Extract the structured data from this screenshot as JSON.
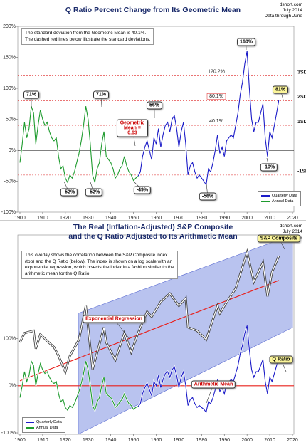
{
  "chart_data": [
    {
      "type": "line",
      "title": [
        "Q Ratio Percent Change from Its Geometric Mean"
      ],
      "source": [
        "dshort.com",
        "July 2014",
        "Data through June"
      ],
      "notes": [
        "The standard deviation from the Geometric Mean is 40.1%.",
        "The dashed red lines below illustrate the standard deviations."
      ],
      "xlim": [
        1900,
        2020
      ],
      "xticks": [
        1900,
        1910,
        1920,
        1930,
        1940,
        1950,
        1960,
        1970,
        1980,
        1990,
        2000,
        2010,
        2020
      ],
      "ylim": [
        -100,
        200
      ],
      "yticks": [
        {
          "value": -100,
          "label": "-100%"
        },
        {
          "value": -50,
          "label": "-50%"
        },
        {
          "value": 0,
          "label": "0%"
        },
        {
          "value": 50,
          "label": "50%"
        },
        {
          "value": 100,
          "label": "100%"
        },
        {
          "value": 150,
          "label": "150%"
        },
        {
          "value": 200,
          "label": "200%"
        }
      ],
      "mean_line": {
        "value": 0,
        "label": "Geometric Mean = 0.63",
        "color": "#000000"
      },
      "sd_lines": [
        {
          "value": 120.2,
          "label": "120.2%",
          "sd": "3SD"
        },
        {
          "value": 80.1,
          "label": "80.1%",
          "sd": "2SD"
        },
        {
          "value": 40.1,
          "label": "40.1%",
          "sd": "1SD"
        },
        {
          "value": -40.1,
          "sd": "-1SD"
        }
      ],
      "series": [
        {
          "name": "Quarterly Data",
          "color": "#1c1cc8",
          "x": [
            1952,
            1953,
            1954,
            1955,
            1956,
            1957,
            1958,
            1959,
            1960,
            1961,
            1962,
            1963,
            1964,
            1965,
            1966,
            1967,
            1968,
            1969,
            1970,
            1971,
            1972,
            1973,
            1974,
            1975,
            1976,
            1977,
            1978,
            1979,
            1980,
            1981,
            1982,
            1983,
            1984,
            1985,
            1986,
            1987,
            1988,
            1989,
            1990,
            1991,
            1992,
            1993,
            1994,
            1995,
            1996,
            1997,
            1998,
            1999,
            2000,
            2001,
            2002,
            2003,
            2004,
            2005,
            2006,
            2007,
            2008,
            2009,
            2010,
            2011,
            2012,
            2013,
            2014
          ],
          "values": [
            -42,
            -35,
            -10,
            5,
            15,
            0,
            -15,
            20,
            10,
            35,
            5,
            25,
            40,
            45,
            30,
            50,
            56,
            35,
            5,
            30,
            45,
            10,
            -40,
            -25,
            -20,
            -35,
            -45,
            -40,
            -45,
            -50,
            -56,
            -30,
            -35,
            -20,
            0,
            25,
            -5,
            5,
            -10,
            15,
            20,
            25,
            20,
            40,
            60,
            90,
            110,
            140,
            160,
            100,
            50,
            30,
            45,
            45,
            60,
            75,
            20,
            -10,
            30,
            20,
            40,
            60,
            81
          ]
        },
        {
          "name": "Annual Data",
          "color": "#1e9b2e",
          "x": [
            1900,
            1901,
            1902,
            1903,
            1904,
            1905,
            1906,
            1907,
            1908,
            1909,
            1910,
            1911,
            1912,
            1913,
            1914,
            1915,
            1916,
            1917,
            1918,
            1919,
            1920,
            1921,
            1922,
            1923,
            1924,
            1925,
            1926,
            1927,
            1928,
            1929,
            1930,
            1931,
            1932,
            1933,
            1934,
            1935,
            1936,
            1937,
            1938,
            1939,
            1940,
            1941,
            1942,
            1943,
            1944,
            1945,
            1946,
            1947,
            1948,
            1949,
            1950,
            1951,
            1952
          ],
          "values": [
            -20,
            10,
            45,
            20,
            35,
            71,
            60,
            10,
            40,
            65,
            50,
            40,
            45,
            30,
            20,
            15,
            20,
            -10,
            -30,
            -25,
            -45,
            -52,
            -40,
            -45,
            -35,
            -20,
            -5,
            15,
            40,
            71,
            50,
            10,
            -40,
            -52,
            -30,
            -20,
            10,
            30,
            -10,
            -15,
            -20,
            -30,
            -45,
            -40,
            -30,
            -25,
            -10,
            -25,
            -35,
            -40,
            -49,
            -45,
            -42
          ]
        }
      ],
      "annotations": [
        "71%",
        "71%",
        "-52%",
        "-52%",
        "-49%",
        "56%",
        "-56%",
        "160%",
        "-10%",
        "81%"
      ],
      "legend": "lower right"
    },
    {
      "type": "line",
      "title": [
        "The Real (Inflation-Adjusted) S&P Composite",
        "and the Q Ratio Adjusted to Its Arithmetic Mean"
      ],
      "source": [
        "dshort.com",
        "July 2014",
        "Data through June"
      ],
      "notes": [
        "This overlay shows the correlation between the S&P Composite index",
        "(top) and the Q Ratio (below). The index is shown on a log scale with an",
        "exponential regression, which bisects the index in a fashion similar to the",
        "arithmetic mean for the Q Ratio."
      ],
      "xlim": [
        1900,
        2020
      ],
      "xticks": [
        1900,
        1910,
        1920,
        1930,
        1940,
        1950,
        1960,
        1970,
        1980,
        1990,
        2000,
        2010,
        2020
      ],
      "ylim": [
        -103,
        320
      ],
      "yticks": [
        {
          "value": -100,
          "label": "-100%"
        },
        {
          "value": 0,
          "label": "0%"
        },
        {
          "value": 100,
          "label": "100%"
        }
      ],
      "y2lim": [
        50,
        3000
      ],
      "y2log": true,
      "mean_line": {
        "value": 0,
        "label": "Arithmetic Mean",
        "color": "#e8201c"
      },
      "series": [
        {
          "name": "Quarterly Data",
          "color": "#1c1cc8",
          "x": [
            1952,
            1953,
            1954,
            1955,
            1956,
            1957,
            1958,
            1959,
            1960,
            1961,
            1962,
            1963,
            1964,
            1965,
            1966,
            1967,
            1968,
            1969,
            1970,
            1971,
            1972,
            1973,
            1974,
            1975,
            1976,
            1977,
            1978,
            1979,
            1980,
            1981,
            1982,
            1983,
            1984,
            1985,
            1986,
            1987,
            1988,
            1989,
            1990,
            1991,
            1992,
            1993,
            1994,
            1995,
            1996,
            1997,
            1998,
            1999,
            2000,
            2001,
            2002,
            2003,
            2004,
            2005,
            2006,
            2007,
            2008,
            2009,
            2010,
            2011,
            2012,
            2013,
            2014
          ],
          "values": [
            -44,
            -38,
            -17,
            -4,
            5,
            -8,
            -21,
            9,
            0,
            22,
            -4,
            13,
            26,
            30,
            18,
            34,
            40,
            22,
            -4,
            18,
            30,
            0,
            -42,
            -29,
            -25,
            -38,
            -46,
            -42,
            -46,
            -50,
            -56,
            -34,
            -38,
            -25,
            -8,
            13,
            -12,
            -4,
            -17,
            5,
            9,
            13,
            9,
            26,
            43,
            68,
            86,
            111,
            128,
            77,
            34,
            18,
            30,
            30,
            43,
            56,
            9,
            -17,
            18,
            9,
            26,
            43,
            61
          ]
        },
        {
          "name": "Annual Data",
          "color": "#1e9b2e",
          "x": [
            1900,
            1901,
            1902,
            1903,
            1904,
            1905,
            1906,
            1907,
            1908,
            1909,
            1910,
            1911,
            1912,
            1913,
            1914,
            1915,
            1916,
            1917,
            1918,
            1919,
            1920,
            1921,
            1922,
            1923,
            1924,
            1925,
            1926,
            1927,
            1928,
            1929,
            1930,
            1931,
            1932,
            1933,
            1934,
            1935,
            1936,
            1937,
            1938,
            1939,
            1940,
            1941,
            1942,
            1943,
            1944,
            1945,
            1946,
            1947,
            1948,
            1949,
            1950,
            1951,
            1952
          ],
          "values": [
            -25,
            0,
            30,
            9,
            22,
            52,
            43,
            0,
            26,
            47,
            34,
            26,
            30,
            18,
            9,
            5,
            9,
            -17,
            -34,
            -29,
            -46,
            -52,
            -42,
            -46,
            -38,
            -25,
            -12,
            5,
            26,
            52,
            34,
            0,
            -42,
            -52,
            -34,
            -25,
            0,
            18,
            -17,
            -21,
            -25,
            -34,
            -46,
            -42,
            -34,
            -29,
            -17,
            -29,
            -38,
            -42,
            -50,
            -46,
            -44
          ]
        }
      ],
      "index": {
        "name": "S&P Composite",
        "color": "#444444",
        "axis": "y2",
        "x": [
          1900,
          1902,
          1906,
          1907,
          1909,
          1912,
          1915,
          1917,
          1920,
          1922,
          1926,
          1929,
          1932,
          1937,
          1938,
          1942,
          1946,
          1949,
          1952,
          1956,
          1958,
          1962,
          1966,
          1970,
          1973,
          1974,
          1978,
          1982,
          1987,
          1988,
          1990,
          1995,
          2000,
          2003,
          2007,
          2009,
          2011,
          2014
        ],
        "values": [
          330,
          400,
          420,
          290,
          390,
          340,
          300,
          250,
          180,
          250,
          350,
          700,
          190,
          450,
          330,
          230,
          400,
          270,
          400,
          620,
          560,
          760,
          900,
          700,
          820,
          450,
          420,
          350,
          700,
          600,
          700,
          1000,
          2100,
          1150,
          1700,
          850,
          1400,
          1950
        ]
      },
      "regression": {
        "name": "Exponential Regression",
        "color": "#e8201c",
        "axis": "y2",
        "x": [
          1900,
          2014
        ],
        "values": [
          150,
          1180
        ]
      },
      "annotations": [
        "Q Ratio"
      ],
      "legend": "lower left"
    }
  ]
}
